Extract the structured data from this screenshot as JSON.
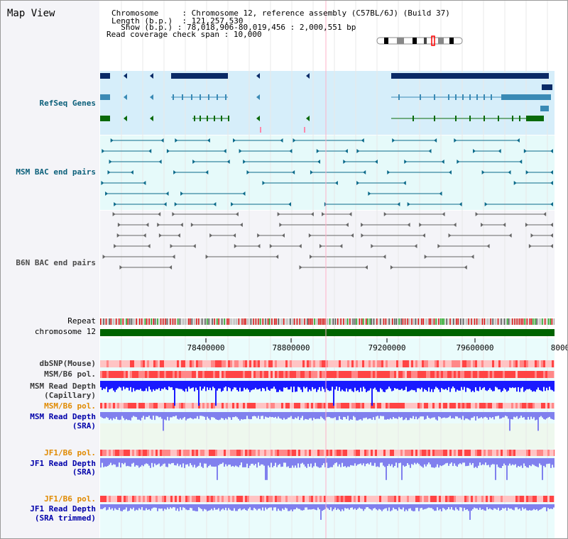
{
  "panel": {
    "title": "Map View"
  },
  "info": {
    "chromosome_label": "Chromosome",
    "chromosome_value": "Chromosome 12, reference assembly (C57BL/6J) (Build 37)",
    "length_label": "Length (b.p.)",
    "length_value": "121,257,530",
    "show_label": "Show (b.p.)",
    "show_value": "78,018,906-80,019,456 : 2,000,551 bp",
    "coverage_label": "Read coverage check span",
    "coverage_value": "10,000"
  },
  "tracks": {
    "refseq": "RefSeq Genes",
    "msm_bac": "MSM BAC end pairs",
    "b6n_bac": "B6N BAC end pairs",
    "repeat": "Repeat",
    "chromosome": "chromosome 12",
    "dbsnp": "dbSNP(Mouse)",
    "msm_b6_pol_1": "MSM/B6 pol.",
    "msm_read_depth_cap_1": "MSM Read Depth",
    "msm_read_depth_cap_2": "(Capillary)",
    "msm_b6_pol_2": "MSM/B6 pol.",
    "msm_read_depth_sra_1": "MSM Read Depth",
    "msm_read_depth_sra_2": "(SRA)",
    "jf1_b6_pol_1": "JF1/B6 pol.",
    "jf1_read_depth_sra_1": "JF1 Read Depth",
    "jf1_read_depth_sra_2": "(SRA)",
    "jf1_b6_pol_2": "JF1/B6 pol.",
    "jf1_read_depth_trim_1": "JF1 Read Depth",
    "jf1_read_depth_trim_2": "(SRA trimmed)"
  },
  "axis": {
    "ticks": [
      "78400000",
      "78800000",
      "79200000",
      "79600000",
      "8000"
    ]
  },
  "colors": {
    "refseq_bg": "#d6eefa",
    "bac_bg": "#e6fafa",
    "gene_navy": "#0a2a66",
    "gene_teal": "#3a8ab5",
    "gene_green": "#0a6a0a",
    "chromosome_bar": "#006400",
    "depth_blue": "#1a1aff",
    "depth_lav": "#8080ee",
    "pol_red": "#ff5050"
  }
}
